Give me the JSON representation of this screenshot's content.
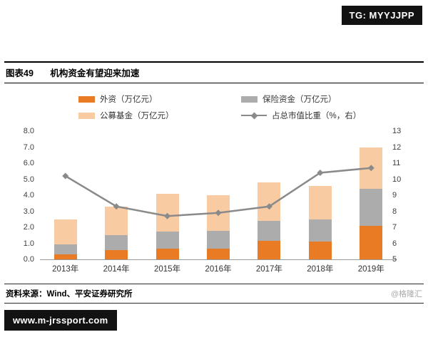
{
  "badges": {
    "tg": "TG: MYYJJPP",
    "site": "www.m-jrssport.com"
  },
  "header": {
    "figure_label": "图表49",
    "title": "机构资金有望迎来加速"
  },
  "footer": {
    "source": "资料来源：Wind、平安证券研究所",
    "watermark": "@格隆汇"
  },
  "colors": {
    "foreign": "#E97B24",
    "insurance": "#ACACAC",
    "fund": "#F9CBA3",
    "line": "#8A8A8A",
    "axis_text": "#404040"
  },
  "chart_data": {
    "type": "bar",
    "subtype": "stacked-bars-with-line",
    "categories": [
      "2013年",
      "2014年",
      "2015年",
      "2016年",
      "2017年",
      "2018年",
      "2019年"
    ],
    "series": [
      {
        "name": "外资（万亿元）",
        "kind": "bar",
        "color_key": "foreign",
        "values": [
          0.3,
          0.6,
          0.65,
          0.65,
          1.15,
          1.1,
          2.1
        ]
      },
      {
        "name": "保险资金（万亿元）",
        "kind": "bar",
        "color_key": "insurance",
        "values": [
          0.65,
          0.9,
          1.1,
          1.15,
          1.25,
          1.4,
          2.3
        ]
      },
      {
        "name": "公募基金（万亿元）",
        "kind": "bar",
        "color_key": "fund",
        "values": [
          1.55,
          1.8,
          2.35,
          2.2,
          2.4,
          2.1,
          2.6
        ]
      },
      {
        "name": "占总市值比重（%，右）",
        "kind": "line",
        "color_key": "line",
        "axis": "right",
        "values": [
          10.2,
          8.3,
          7.7,
          7.9,
          8.3,
          10.4,
          10.7
        ]
      }
    ],
    "left_axis": {
      "min": 0,
      "max": 8,
      "ticks": [
        "8.0",
        "7.0",
        "6.0",
        "5.0",
        "4.0",
        "3.0",
        "2.0",
        "1.0",
        "0.0"
      ]
    },
    "right_axis": {
      "min": 5,
      "max": 13,
      "ticks": [
        "13",
        "12",
        "11",
        "10",
        "9",
        "8",
        "7",
        "6",
        "5"
      ]
    },
    "grid": false,
    "legend_position": "top"
  }
}
